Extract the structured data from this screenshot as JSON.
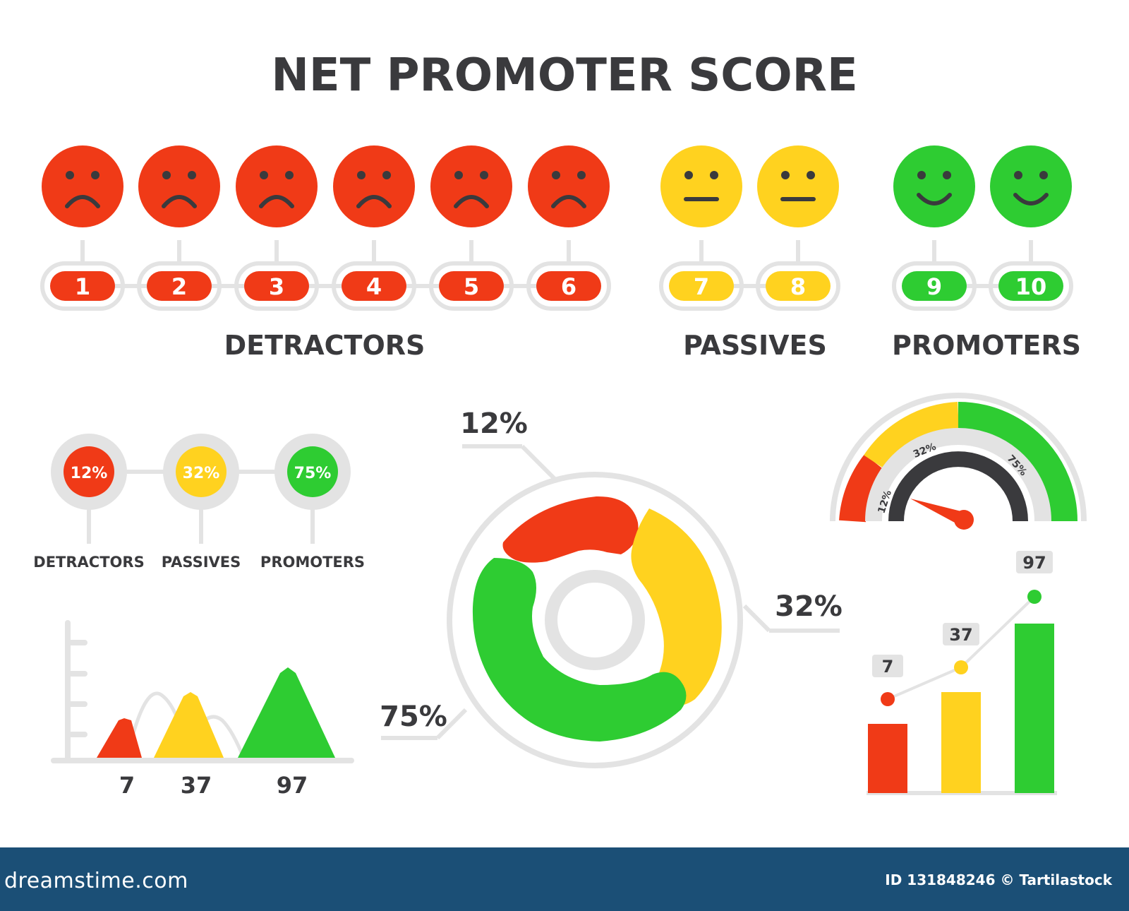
{
  "title": "NET PROMOTER SCORE",
  "colors": {
    "red": "#f03a17",
    "yellow": "#ffd21f",
    "green": "#2ecc32",
    "track": "#e3e3e3",
    "text": "#3a3a3d",
    "footer": "#1b4f76"
  },
  "scale": {
    "faces": [
      {
        "score": "1",
        "mood": "sad",
        "color": "red"
      },
      {
        "score": "2",
        "mood": "sad",
        "color": "red"
      },
      {
        "score": "3",
        "mood": "sad",
        "color": "red"
      },
      {
        "score": "4",
        "mood": "sad",
        "color": "red"
      },
      {
        "score": "5",
        "mood": "sad",
        "color": "red"
      },
      {
        "score": "6",
        "mood": "sad",
        "color": "red"
      },
      {
        "score": "7",
        "mood": "neutral",
        "color": "yellow"
      },
      {
        "score": "8",
        "mood": "neutral",
        "color": "yellow"
      },
      {
        "score": "9",
        "mood": "happy",
        "color": "green"
      },
      {
        "score": "10",
        "mood": "happy",
        "color": "green"
      }
    ],
    "groups": [
      "DETRACTORS",
      "PASSIVES",
      "PROMOTERS"
    ]
  },
  "badges": [
    {
      "value": "12%",
      "label": "DETRACTORS",
      "color": "red"
    },
    {
      "value": "32%",
      "label": "PASSIVES",
      "color": "yellow"
    },
    {
      "value": "75%",
      "label": "PROMOTERS",
      "color": "green"
    }
  ],
  "peak_chart": {
    "values": [
      "7",
      "37",
      "97"
    ],
    "colors": [
      "red",
      "yellow",
      "green"
    ]
  },
  "donut": {
    "labels": [
      "12%",
      "32%",
      "75%"
    ],
    "colors": [
      "red",
      "yellow",
      "green"
    ]
  },
  "gauge": {
    "labels": [
      "12%",
      "32%",
      "75%"
    ],
    "colors": [
      "red",
      "yellow",
      "green"
    ]
  },
  "bar_chart": {
    "values": [
      "7",
      "37",
      "97"
    ],
    "colors": [
      "red",
      "yellow",
      "green"
    ]
  },
  "footer": {
    "site": "dreamstime.com",
    "credit": "ID 131848246 © Tartilastock"
  }
}
